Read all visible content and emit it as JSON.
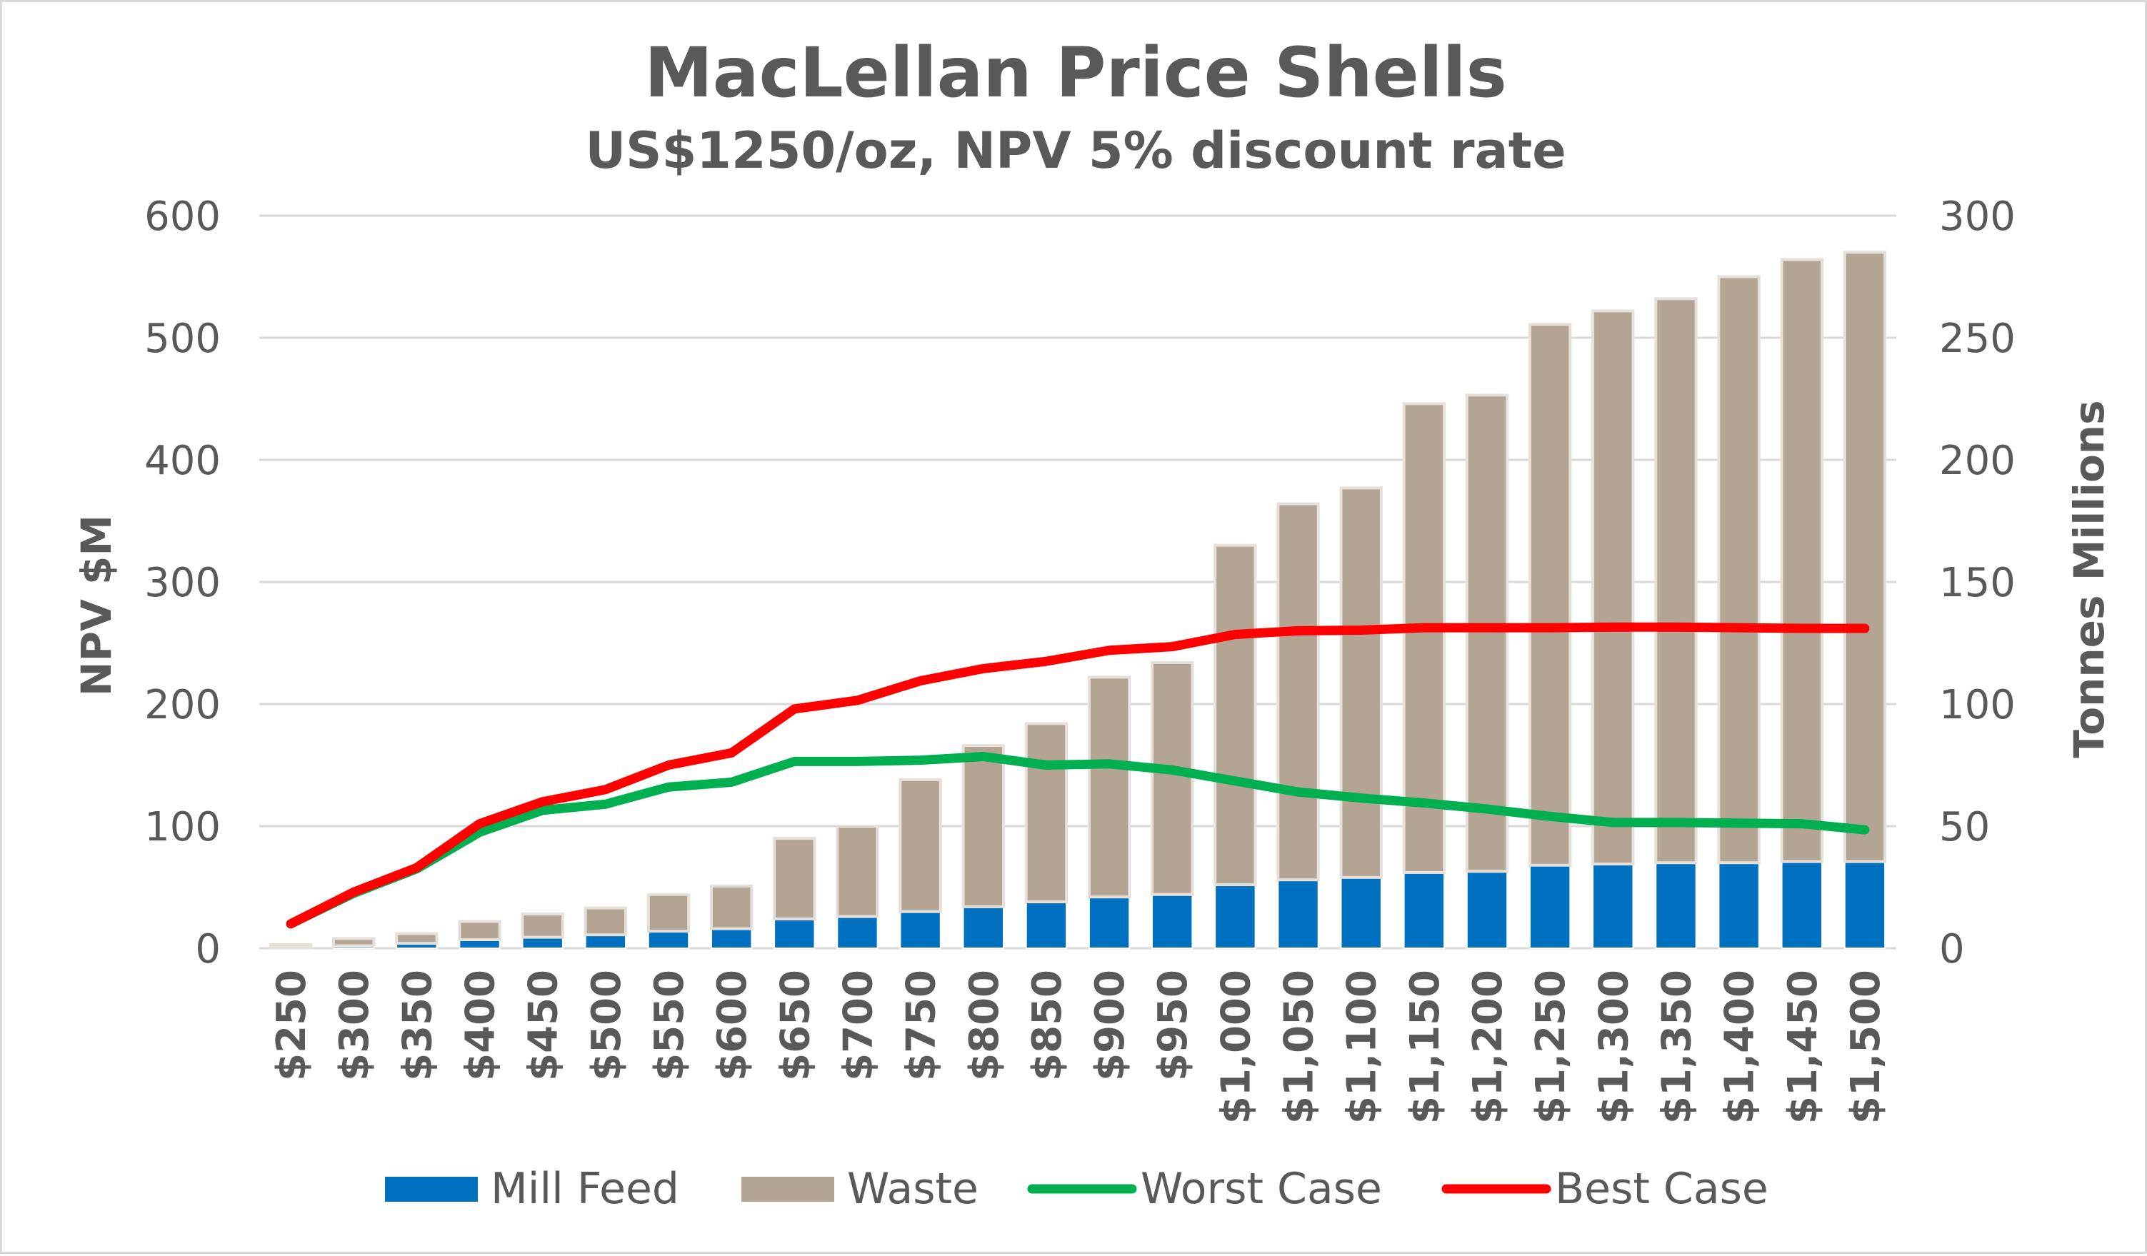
{
  "chart_data": {
    "type": "bar",
    "title": "MacLellan Price Shells",
    "subtitle": "US$1250/oz, NPV 5% discount rate",
    "ylabel_left": "NPV $M",
    "ylabel_right": "Tonnes  Millions",
    "categories": [
      "$250",
      "$300",
      "$350",
      "$400",
      "$450",
      "$500",
      "$550",
      "$600",
      "$650",
      "$700",
      "$750",
      "$800",
      "$850",
      "$900",
      "$950",
      "$1,000",
      "$1,050",
      "$1,100",
      "$1,150",
      "$1,200",
      "$1,250",
      "$1,300",
      "$1,350",
      "$1,400",
      "$1,450",
      "$1,500"
    ],
    "ylim_left": [
      0,
      600
    ],
    "ylim_right": [
      0,
      300
    ],
    "yticks_left": [
      0,
      100,
      200,
      300,
      400,
      500,
      600
    ],
    "yticks_right": [
      0,
      50,
      100,
      150,
      200,
      250,
      300
    ],
    "grid": true,
    "legend_position": "bottom",
    "series": [
      {
        "name": "Mill Feed",
        "type": "bar",
        "axis": "right",
        "stack": "tonnes",
        "color": "#0070c0",
        "values": [
          0.3,
          1,
          2,
          3.5,
          4.5,
          5.5,
          7,
          8,
          12,
          13,
          15,
          17,
          19,
          21,
          22,
          26,
          28,
          29,
          31,
          31.5,
          34,
          34.5,
          35,
          35,
          35.5,
          35.5
        ]
      },
      {
        "name": "Waste",
        "type": "bar",
        "axis": "right",
        "stack": "tonnes",
        "color": "#b4a494",
        "values": [
          1.2,
          3,
          4,
          7.5,
          9.5,
          11,
          15,
          17.5,
          33,
          37,
          54,
          66,
          73,
          90,
          95,
          139,
          154,
          159.5,
          192,
          195,
          221.5,
          226.5,
          231,
          240,
          246.5,
          249.5
        ]
      },
      {
        "name": "Worst Case",
        "type": "line",
        "axis": "left",
        "color": "#00b050",
        "values": [
          20,
          45,
          65,
          95,
          113,
          118,
          132,
          136,
          153,
          153,
          154,
          157,
          150,
          151,
          146,
          137,
          128,
          123,
          119,
          114,
          108,
          103,
          103,
          102.5,
          102,
          97
        ]
      },
      {
        "name": "Best Case",
        "type": "line",
        "axis": "left",
        "color": "#ff0000",
        "values": [
          20,
          46,
          66,
          102,
          120,
          130,
          150,
          160,
          196,
          203,
          219,
          229,
          235,
          244,
          247,
          257,
          260,
          260.5,
          262.5,
          262.5,
          262.5,
          263,
          263,
          262.5,
          262,
          262
        ]
      }
    ]
  }
}
